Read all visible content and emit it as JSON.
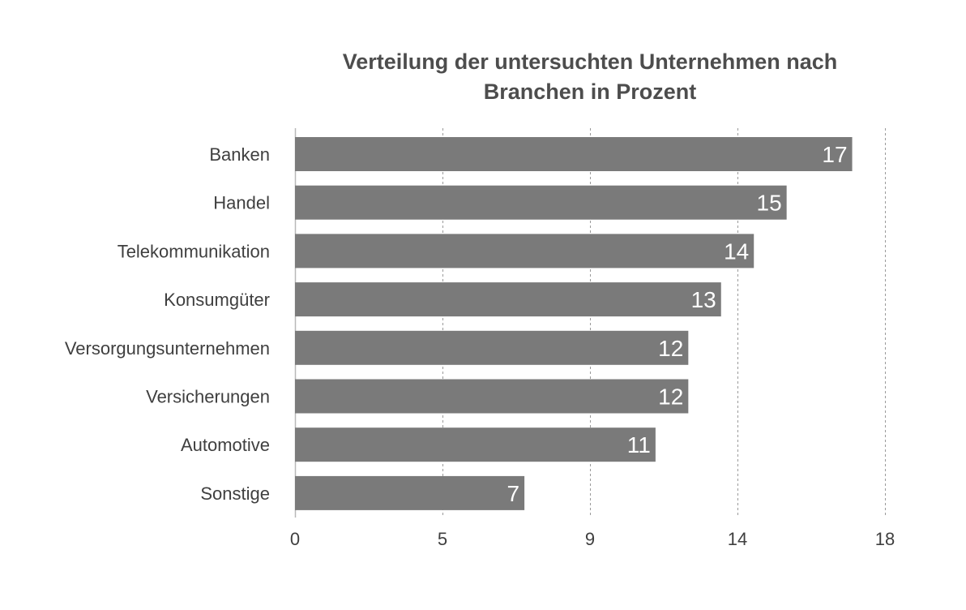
{
  "chart_data": {
    "type": "bar",
    "orientation": "horizontal",
    "title_lines": [
      "Verteilung der untersuchten Unternehmen nach",
      "Branchen in Prozent"
    ],
    "categories": [
      "Banken",
      "Handel",
      "Telekommunikation",
      "Konsumgüter",
      "Versorgungsunternehmen",
      "Versicherungen",
      "Automotive",
      "Sonstige"
    ],
    "values": [
      17,
      15,
      14,
      13,
      12,
      12,
      11,
      7
    ],
    "value_labels": [
      "17",
      "15",
      "14",
      "13",
      "12",
      "12",
      "11",
      "7"
    ],
    "xlim": [
      0,
      18
    ],
    "x_ticks": [
      0,
      4.5,
      9,
      13.5,
      18
    ],
    "x_tick_labels": [
      "0",
      "5",
      "9",
      "14",
      "18"
    ],
    "grid": "vertical dashed",
    "legend": "none",
    "colors": {
      "bar": "#7a7a7a",
      "grid": "#9a9a9a",
      "axis": "#b8b8b8",
      "value_text": "#ffffff",
      "text": "#3f3f3f"
    }
  }
}
